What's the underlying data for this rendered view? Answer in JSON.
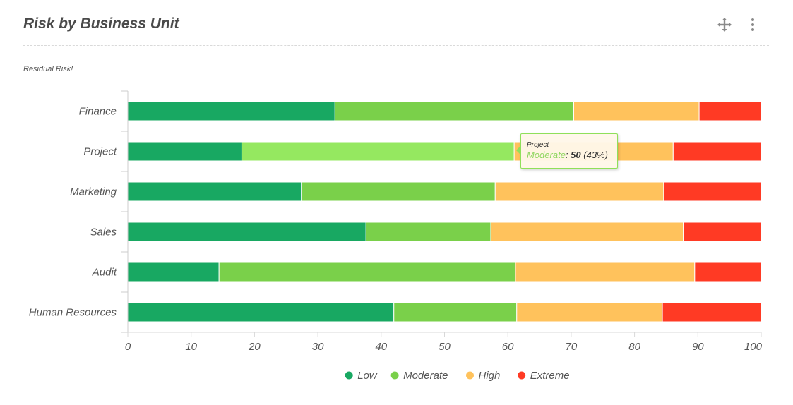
{
  "header": {
    "title": "Risk by Business Unit",
    "move_icon": "move-arrows-icon",
    "menu_icon": "kebab-menu-icon"
  },
  "chart_data": {
    "type": "bar",
    "orientation": "horizontal",
    "stacking": "percent",
    "title": "Risk by Business Unit",
    "subtitle": "Residual Risk!",
    "categories": [
      "Finance",
      "Project",
      "Marketing",
      "Sales",
      "Audit",
      "Human Resources"
    ],
    "series": [
      {
        "name": "Low",
        "color": "#18a862",
        "values": [
          32.7,
          18.0,
          27.4,
          37.6,
          14.4,
          42.0
        ]
      },
      {
        "name": "Moderate",
        "color": "#7ad04a",
        "values": [
          37.7,
          43.0,
          30.6,
          19.7,
          46.8,
          19.4
        ]
      },
      {
        "name": "High",
        "color": "#ffc25c",
        "values": [
          19.8,
          25.1,
          26.6,
          30.4,
          28.3,
          23.0
        ]
      },
      {
        "name": "Extreme",
        "color": "#ff3a24",
        "values": [
          9.8,
          13.9,
          15.4,
          12.3,
          10.5,
          15.6
        ]
      }
    ],
    "xlim": [
      0,
      100
    ],
    "xticks": [
      0,
      10,
      20,
      30,
      40,
      50,
      60,
      70,
      80,
      90,
      100
    ],
    "grid": false,
    "legend": "bottom-center",
    "highlight": {
      "category": "Project",
      "series": "Moderate",
      "color": "#95e860"
    }
  },
  "tooltip": {
    "category": "Project",
    "series": "Moderate",
    "separator": ":",
    "value": "50",
    "percent": "(43%)"
  }
}
